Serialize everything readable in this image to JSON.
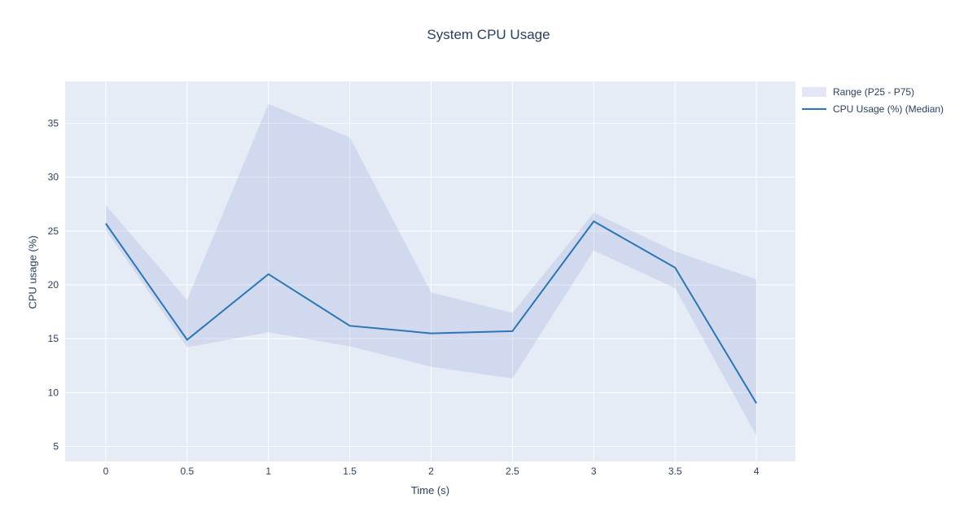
{
  "chart_data": {
    "type": "line",
    "title": "System CPU Usage",
    "xlabel": "Time (s)",
    "ylabel": "CPU usage (%)",
    "x": [
      0,
      0.5,
      1,
      1.5,
      2,
      2.5,
      3,
      3.5,
      4
    ],
    "series": [
      {
        "name": "CPU Usage (%) (Median)",
        "type": "line",
        "values": [
          25.7,
          14.9,
          21.0,
          16.2,
          15.5,
          15.7,
          25.9,
          21.6,
          9.0
        ]
      },
      {
        "name": "Range (P25 - P75)",
        "type": "band",
        "upper": [
          27.4,
          18.6,
          36.8,
          33.7,
          19.3,
          17.4,
          26.7,
          23.1,
          20.5
        ],
        "lower": [
          25.1,
          14.2,
          15.6,
          14.3,
          12.4,
          11.3,
          23.2,
          19.7,
          6.0
        ]
      }
    ],
    "x_ticks": {
      "values": [
        0,
        0.5,
        1,
        1.5,
        2,
        2.5,
        3,
        3.5,
        4
      ],
      "labels": [
        "0",
        "0.5",
        "1",
        "1.5",
        "2",
        "2.5",
        "3",
        "3.5",
        "4"
      ]
    },
    "y_ticks": {
      "values": [
        5,
        10,
        15,
        20,
        25,
        30,
        35
      ],
      "labels": [
        "5",
        "10",
        "15",
        "20",
        "25",
        "30",
        "35"
      ]
    },
    "x_range": [
      -0.25,
      4.24
    ],
    "y_range": [
      3.6,
      38.9
    ],
    "grid": true,
    "legend_position": "right",
    "legend": [
      {
        "label": "Range (P25 - P75)",
        "swatch": "band"
      },
      {
        "label": "CPU Usage (%) (Median)",
        "swatch": "line"
      }
    ],
    "colors": {
      "plot_background": "#e5ecf6",
      "gridline": "#ffffff",
      "line": "#2e75b5",
      "band": "#97a0d8",
      "band_opacity": 0.25,
      "text": "#2a3f5f"
    }
  }
}
